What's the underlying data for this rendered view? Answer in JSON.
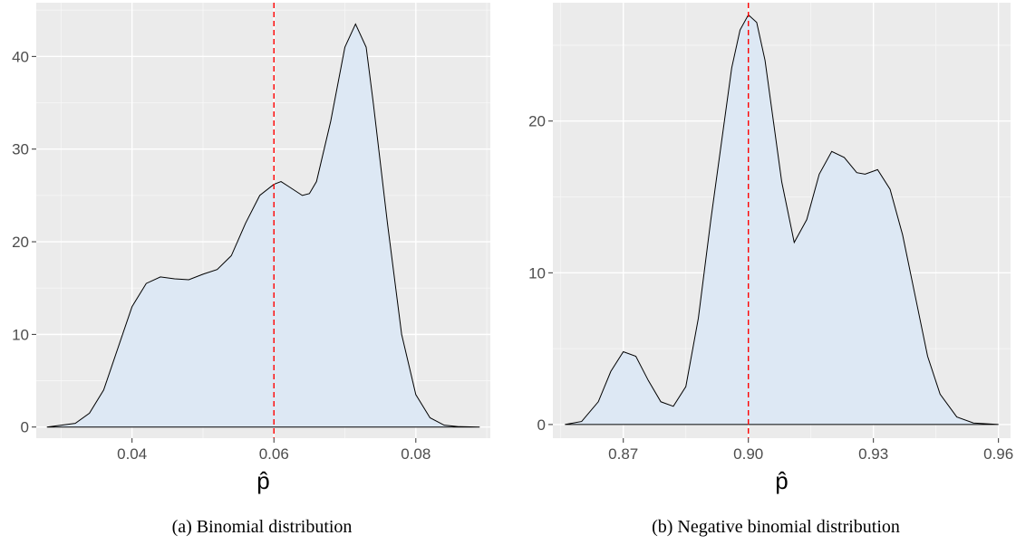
{
  "chart_data": [
    {
      "type": "area",
      "caption": "(a) Binomial distribution",
      "xlabel": "p̂",
      "ylabel": "",
      "xlim": [
        0.0265,
        0.0905
      ],
      "ylim": [
        -1.2,
        45.8
      ],
      "x_ticks": [
        0.04,
        0.06,
        0.08
      ],
      "x_tick_labels": [
        "0.04",
        "0.06",
        "0.08"
      ],
      "y_ticks": [
        0,
        10,
        20,
        30,
        40
      ],
      "y_tick_labels": [
        "0",
        "10",
        "20",
        "30",
        "40"
      ],
      "vline": 0.06,
      "vline_color": "#ff0000",
      "fill_color": "#dde8f4",
      "grid": true,
      "x": [
        0.028,
        0.032,
        0.034,
        0.036,
        0.038,
        0.04,
        0.042,
        0.044,
        0.046,
        0.048,
        0.05,
        0.052,
        0.054,
        0.056,
        0.058,
        0.06,
        0.061,
        0.062,
        0.064,
        0.065,
        0.066,
        0.068,
        0.07,
        0.0715,
        0.073,
        0.074,
        0.076,
        0.078,
        0.08,
        0.082,
        0.084,
        0.086,
        0.089
      ],
      "y": [
        0,
        0.4,
        1.5,
        4,
        8.5,
        13,
        15.5,
        16.2,
        16,
        15.9,
        16.5,
        17,
        18.5,
        22,
        25,
        26.2,
        26.5,
        26,
        25,
        25.2,
        26.5,
        33,
        41,
        43.5,
        41,
        35,
        22,
        10,
        3.5,
        1,
        0.2,
        0.05,
        0
      ]
    },
    {
      "type": "area",
      "caption": "(b) Negative binomial distribution",
      "xlabel": "p̂",
      "ylabel": "",
      "xlim": [
        0.8531,
        0.9629
      ],
      "ylim": [
        -0.9,
        27.8
      ],
      "x_ticks": [
        0.87,
        0.9,
        0.93,
        0.96
      ],
      "x_tick_labels": [
        "0.87",
        "0.90",
        "0.93",
        "0.96"
      ],
      "y_ticks": [
        0,
        10,
        20
      ],
      "y_tick_labels": [
        "0",
        "10",
        "20"
      ],
      "vline": 0.9,
      "vline_color": "#ff0000",
      "fill_color": "#dde8f4",
      "grid": true,
      "x": [
        0.856,
        0.86,
        0.864,
        0.867,
        0.87,
        0.873,
        0.876,
        0.879,
        0.882,
        0.885,
        0.888,
        0.891,
        0.894,
        0.896,
        0.898,
        0.9,
        0.902,
        0.904,
        0.906,
        0.908,
        0.911,
        0.914,
        0.917,
        0.92,
        0.923,
        0.926,
        0.928,
        0.931,
        0.934,
        0.937,
        0.94,
        0.943,
        0.946,
        0.95,
        0.954,
        0.96
      ],
      "y": [
        0,
        0.2,
        1.5,
        3.5,
        4.8,
        4.5,
        2.9,
        1.5,
        1.2,
        2.5,
        7,
        13.5,
        19.5,
        23.5,
        26,
        27,
        26.5,
        24,
        20,
        16,
        12,
        13.5,
        16.5,
        18,
        17.6,
        16.6,
        16.5,
        16.8,
        15.5,
        12.5,
        8.5,
        4.5,
        2,
        0.5,
        0.1,
        0
      ]
    }
  ]
}
